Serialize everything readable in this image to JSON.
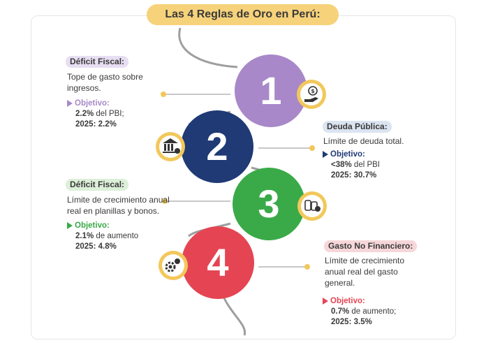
{
  "title": "Las 4 Reglas de Oro en Perú:",
  "colors": {
    "purple": "#a888c8",
    "navy": "#1f3a75",
    "green": "#3aaa48",
    "red": "#e54553",
    "gold": "#f2c85a",
    "line": "#b5b5b5"
  },
  "rules": [
    {
      "number": "1",
      "tag": "Déficit Fiscal:",
      "desc": [
        "Tope de gasto sobre",
        "ingresos."
      ],
      "objective_label": "Objetivo:",
      "objective_lines": [
        {
          "bold": "2.2%",
          "rest": " del PBI;"
        },
        {
          "bold": "2025: 2.2%",
          "rest": ""
        }
      ],
      "icon": "hand-money-icon"
    },
    {
      "number": "2",
      "tag": "Deuda Pública:",
      "desc": [
        "Límite de deuda total."
      ],
      "objective_label": "Objetivo:",
      "objective_lines": [
        {
          "bold": "<38%",
          "rest": " del PBI"
        },
        {
          "bold": "2025: 30.7%",
          "rest": ""
        }
      ],
      "icon": "bank-icon"
    },
    {
      "number": "3",
      "tag": "Déficit Fiscal:",
      "desc": [
        "Límite de crecimiento anual",
        "real en planillas y bonos."
      ],
      "objective_label": "Objetivo:",
      "objective_lines": [
        {
          "bold": "2.1%",
          "rest": " de aumento"
        },
        {
          "bold": "2025: 4.8%",
          "rest": ""
        }
      ],
      "icon": "coins-gear-icon"
    },
    {
      "number": "4",
      "tag": "Gasto No Financiero:",
      "desc": [
        "Límite de crecimiento",
        "anual real del gasto",
        "general."
      ],
      "objective_label": "Objetivo:",
      "objective_lines": [
        {
          "bold": "0.7%",
          "rest": " de aumento;"
        },
        {
          "bold": "2025: 3.5%",
          "rest": ""
        }
      ],
      "icon": "gear-money-icon"
    }
  ]
}
